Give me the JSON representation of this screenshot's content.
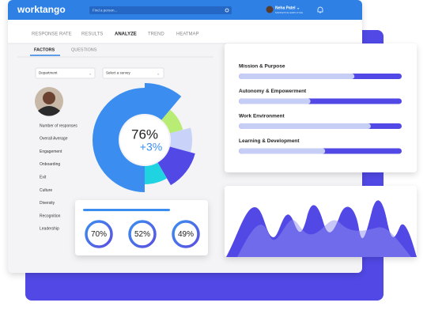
{
  "header": {
    "logo": "worktango",
    "search_placeholder": "Find a person...",
    "user_name": "Neha Patel ⌄",
    "user_role": "MARKETING EMPLOYEE"
  },
  "nav": {
    "tabs": [
      "RESPONSE RATE",
      "RESULTS",
      "ANALYZE",
      "TREND",
      "HEATMAP"
    ],
    "subtabs": [
      "FACTORS",
      "QUESTIONS"
    ]
  },
  "filters": {
    "department": "Department",
    "survey": "Select a survey"
  },
  "list": [
    "Number of responses",
    "Overall Average",
    "Engagement",
    "Onboarding",
    "Exit",
    "Culture",
    "Diversity",
    "Recognition",
    "Leadership"
  ],
  "donut": {
    "score": "76%",
    "change": "+3%"
  },
  "rings": [
    "70%",
    "52%",
    "49%"
  ],
  "factors": [
    {
      "name": "Mission & Purpose",
      "progress": 71
    },
    {
      "name": "Autonomy & Empowerment",
      "progress": 44
    },
    {
      "name": "Work Environment",
      "progress": 81
    },
    {
      "name": "Learning & Development",
      "progress": 53
    }
  ]
}
